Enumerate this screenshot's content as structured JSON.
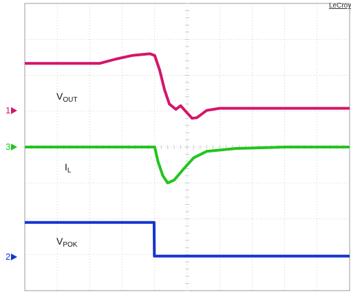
{
  "brand": "LeCroy",
  "colors": {
    "ch1": "#d4156a",
    "ch3": "#22c41e",
    "ch2": "#1535d0",
    "grid": "#bfbfbf",
    "border": "#999999"
  },
  "labels": {
    "vout": {
      "main": "V",
      "sub": "OUT"
    },
    "il": {
      "main": "I",
      "sub": "L"
    },
    "vpok": {
      "main": "V",
      "sub": "POK"
    }
  },
  "markers": {
    "ch1": {
      "label": "1",
      "color": "#d4156a"
    },
    "ch3": {
      "label": "3",
      "color": "#22c41e"
    },
    "ch2": {
      "label": "2",
      "color": "#1535d0"
    }
  },
  "chart_data": {
    "type": "line",
    "title": "",
    "xlabel": "",
    "ylabel": "",
    "grid": true,
    "x_divisions": 10,
    "y_divisions": 8,
    "xlim": [
      0,
      10
    ],
    "ylim": [
      0,
      8
    ],
    "series": [
      {
        "channel": "1",
        "color": "#d4156a",
        "points": [
          [
            0,
            6.33
          ],
          [
            2.3,
            6.33
          ],
          [
            2.8,
            6.45
          ],
          [
            3.3,
            6.55
          ],
          [
            3.85,
            6.6
          ],
          [
            4.0,
            6.55
          ],
          [
            4.15,
            6.15
          ],
          [
            4.3,
            5.6
          ],
          [
            4.45,
            5.2
          ],
          [
            4.65,
            5.05
          ],
          [
            4.8,
            5.15
          ],
          [
            4.95,
            5.0
          ],
          [
            5.15,
            4.8
          ],
          [
            5.3,
            4.82
          ],
          [
            5.6,
            5.02
          ],
          [
            6.0,
            5.08
          ],
          [
            7.0,
            5.08
          ],
          [
            10,
            5.08
          ]
        ]
      },
      {
        "channel": "3",
        "color": "#22c41e",
        "points": [
          [
            0,
            4.0
          ],
          [
            4.0,
            4.0
          ],
          [
            4.1,
            3.6
          ],
          [
            4.25,
            3.2
          ],
          [
            4.4,
            3.0
          ],
          [
            4.6,
            3.08
          ],
          [
            4.9,
            3.4
          ],
          [
            5.2,
            3.7
          ],
          [
            5.6,
            3.88
          ],
          [
            6.5,
            3.96
          ],
          [
            8.0,
            4.0
          ],
          [
            10,
            4.0
          ]
        ]
      },
      {
        "channel": "2",
        "color": "#1535d0",
        "points": [
          [
            0,
            1.9
          ],
          [
            3.98,
            1.9
          ],
          [
            3.99,
            0.96
          ],
          [
            10,
            0.96
          ]
        ]
      }
    ]
  }
}
